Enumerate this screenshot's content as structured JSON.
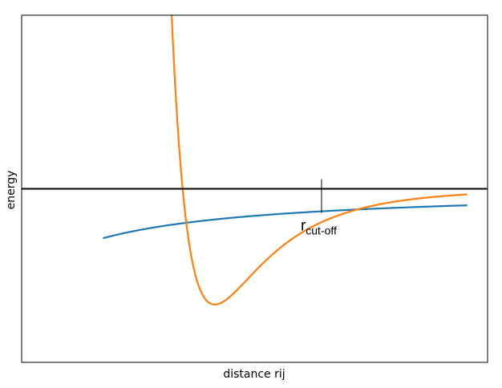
{
  "chart_data": {
    "type": "line",
    "title": "",
    "xlabel": "distance rij",
    "ylabel": "energy",
    "xlim": [
      0.6,
      3.35
    ],
    "ylim": [
      -1.95,
      1.95
    ],
    "grid": false,
    "legend": "none",
    "xticks": [],
    "yticks": [],
    "zero_line": {
      "y": 0,
      "color": "#000000"
    },
    "annotation": {
      "base": "r",
      "subscript": "cut-off",
      "x": 2.37,
      "y": 0
    },
    "series": [
      {
        "color": "#1f77b4",
        "function": "coulomb",
        "params": {
          "a": 0.6
        },
        "x_start": 1.08,
        "x_end": 3.23
      },
      {
        "color": "#ff7f0e",
        "function": "lennard-jones",
        "params": {
          "epsilon": 1.3,
          "sigma": 1.55
        },
        "x_start": 1.48,
        "x_end": 3.23
      }
    ]
  }
}
